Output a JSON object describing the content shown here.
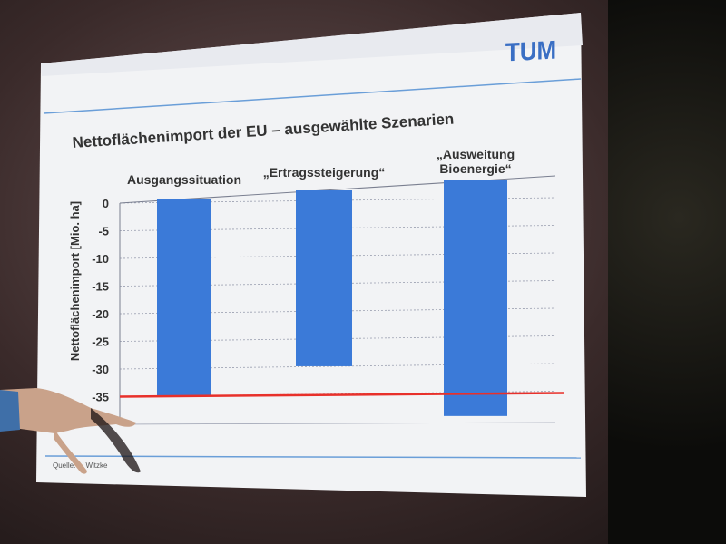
{
  "logo_text": "TUM",
  "source": "Quelle: ... Witzke",
  "colors": {
    "bar": "#3b7ad8",
    "reference_line": "#e8302a",
    "logo": "#3a6fc4",
    "rule": "#6a9ed8"
  },
  "chart_data": {
    "type": "bar",
    "title": "Nettoflächenimport der EU – ausgewählte Szenarien",
    "ylabel": "Nettoflächenimport [Mio. ha]",
    "xlabel": "",
    "categories": [
      {
        "lines": [
          "Ausgangssituation"
        ]
      },
      {
        "lines": [
          "„Ertragssteigerung“"
        ]
      },
      {
        "lines": [
          "„Ausweitung",
          "Bioenergie“"
        ]
      }
    ],
    "values": [
      -35,
      -29.5,
      -38.5
    ],
    "y_ticks": [
      "0",
      "-5",
      "-10",
      "-15",
      "-20",
      "-25",
      "-30",
      "-35"
    ],
    "ylim": [
      -40,
      0
    ],
    "reference_line": -35,
    "grid": true
  }
}
